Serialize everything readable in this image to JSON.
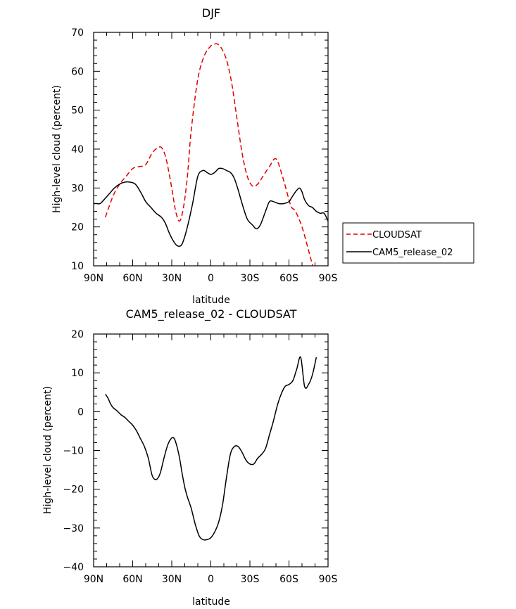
{
  "chart_data": [
    {
      "type": "line",
      "title": "DJF",
      "xlabel": "latitude",
      "ylabel": "High-level cloud (percent)",
      "xlim": [
        -90,
        90
      ],
      "ylim": [
        10,
        70
      ],
      "x_ticks": [
        -90,
        -60,
        -30,
        0,
        30,
        60,
        90
      ],
      "x_tick_labels": [
        "90N",
        "60N",
        "30N",
        "0",
        "30S",
        "60S",
        "90S"
      ],
      "y_ticks": [
        10,
        20,
        30,
        40,
        50,
        60,
        70
      ],
      "y_tick_labels": [
        "10",
        "20",
        "30",
        "40",
        "50",
        "60",
        "70"
      ],
      "legend": {
        "placement": "right",
        "entries": [
          "CLOUDSAT",
          "CAM5_release_02"
        ]
      },
      "series": [
        {
          "name": "CLOUDSAT",
          "color": "#e00000",
          "dash": "dashed",
          "x": [
            -81,
            -75,
            -70,
            -65,
            -60,
            -55,
            -50,
            -45,
            -40,
            -37,
            -34,
            -30,
            -27,
            -24,
            -21,
            -18,
            -15,
            -10,
            -5,
            0,
            3,
            5,
            8,
            12,
            16,
            20,
            24,
            28,
            32,
            36,
            40,
            45,
            50,
            55,
            60,
            62,
            65,
            70,
            75,
            79
          ],
          "y": [
            22.5,
            28,
            31,
            33,
            35,
            35.5,
            36,
            39,
            40.5,
            40,
            37,
            30,
            24,
            21.5,
            25,
            33,
            45,
            58,
            64,
            66.5,
            67,
            67,
            66,
            63,
            57,
            48,
            39,
            33,
            30.5,
            31,
            33,
            35.5,
            37.5,
            33,
            27,
            25,
            24,
            20,
            14,
            9
          ]
        },
        {
          "name": "CAM5_release_02",
          "color": "#000000",
          "dash": "solid",
          "x": [
            -90,
            -88,
            -85,
            -82,
            -78,
            -74,
            -70,
            -66,
            -62,
            -58,
            -54,
            -50,
            -46,
            -42,
            -38,
            -35,
            -32,
            -29,
            -26,
            -23,
            -21,
            -18,
            -14,
            -10,
            -6,
            -3,
            0,
            3,
            6,
            9,
            12,
            15,
            18,
            21,
            24,
            28,
            32,
            35,
            38,
            42,
            45,
            48,
            52,
            56,
            60,
            62,
            65,
            68,
            70,
            72,
            75,
            78,
            81,
            84,
            87,
            90
          ],
          "y": [
            26,
            26,
            26,
            27,
            28.5,
            30,
            31,
            31.5,
            31.5,
            31,
            29,
            26.5,
            25,
            23.5,
            22.5,
            21,
            18.5,
            16.5,
            15.2,
            15.2,
            16.5,
            20,
            26,
            33,
            34.5,
            34,
            33.5,
            34,
            35,
            35,
            34.5,
            34,
            32.5,
            29.5,
            26,
            22,
            20.5,
            19.5,
            20.5,
            24,
            26.5,
            26.5,
            26,
            26,
            26.5,
            27.5,
            29,
            30,
            29,
            27,
            25.5,
            25,
            24,
            23.5,
            23.5,
            21.5
          ]
        }
      ]
    },
    {
      "type": "line",
      "title": "CAM5_release_02 - CLOUDSAT",
      "xlabel": "latitude",
      "ylabel": "High-level cloud (percent)",
      "xlim": [
        -90,
        90
      ],
      "ylim": [
        -40,
        20
      ],
      "x_ticks": [
        -90,
        -60,
        -30,
        0,
        30,
        60,
        90
      ],
      "x_tick_labels": [
        "90N",
        "60N",
        "30N",
        "0",
        "30S",
        "60S",
        "90S"
      ],
      "y_ticks": [
        -40,
        -30,
        -20,
        -10,
        0,
        10,
        20
      ],
      "y_tick_labels": [
        "−40",
        "−30",
        "−20",
        "−10",
        "0",
        "10",
        "20"
      ],
      "series": [
        {
          "color": "#000000",
          "dash": "solid",
          "x": [
            -81,
            -79,
            -77,
            -75,
            -72,
            -69,
            -66,
            -63,
            -60,
            -57,
            -54,
            -51,
            -48,
            -45,
            -42,
            -39,
            -36,
            -33,
            -30,
            -28,
            -26,
            -24,
            -22,
            -20,
            -18,
            -15,
            -12,
            -9,
            -6,
            -3,
            0,
            3,
            6,
            9,
            12,
            15,
            18,
            21,
            24,
            27,
            30,
            33,
            36,
            39,
            42,
            45,
            48,
            51,
            54,
            57,
            60,
            63,
            66,
            69,
            72,
            75,
            78,
            81
          ],
          "y": [
            4.5,
            3.5,
            2,
            1,
            0.2,
            -0.8,
            -1.5,
            -2.5,
            -3.5,
            -5,
            -7,
            -9,
            -12,
            -16.5,
            -17.5,
            -16,
            -12,
            -8.5,
            -6.8,
            -7,
            -9,
            -12,
            -16,
            -19.5,
            -22,
            -25,
            -29,
            -32,
            -33,
            -33,
            -32.5,
            -31,
            -28.5,
            -24,
            -17,
            -11,
            -9,
            -9,
            -10.5,
            -12.5,
            -13.5,
            -13.5,
            -12,
            -11,
            -9.5,
            -6,
            -2.5,
            1.5,
            4.5,
            6.5,
            7,
            8,
            11,
            14,
            6.5,
            7,
            9.5,
            14
          ]
        }
      ]
    }
  ]
}
